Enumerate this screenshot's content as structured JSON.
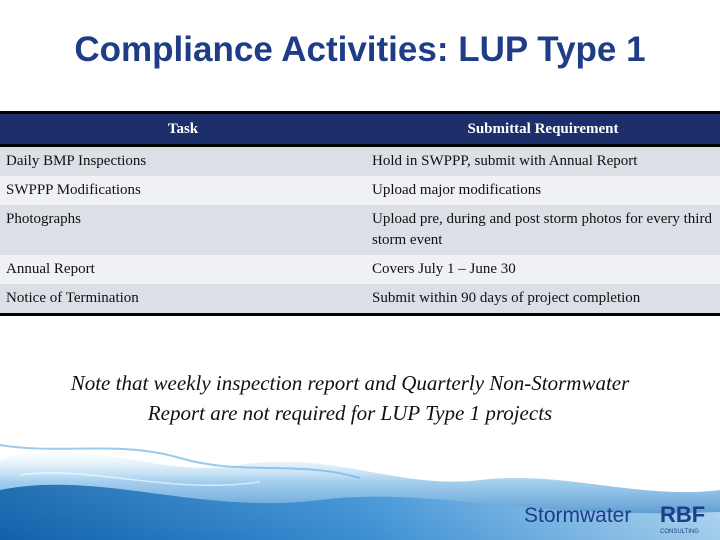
{
  "slide": {
    "title": "Compliance Activities: LUP Type 1",
    "note": "Note that weekly inspection report and Quarterly Non-Stormwater Report are not required for LUP Type 1 projects"
  },
  "table": {
    "headers": [
      "Task",
      "Submittal Requirement"
    ],
    "rows": [
      [
        "Daily BMP Inspections",
        "Hold in SWPPP, submit with Annual Report"
      ],
      [
        "SWPPP Modifications",
        "Upload major modifications"
      ],
      [
        "Photographs",
        "Upload pre, during and post storm photos for every third storm event"
      ],
      [
        "Annual Report",
        "Covers July 1 – June 30"
      ],
      [
        "Notice of Termination",
        "Submit within 90 days of project completion"
      ]
    ]
  },
  "footer": {
    "brand_text": "Stormwater",
    "logo_text": "RBF",
    "logo_subtext": "CONSULTING"
  },
  "colors": {
    "title": "#1f3d87",
    "header_bg": "#1c2f6b",
    "row_odd": "#dcdfe6",
    "row_even": "#eff1f4"
  },
  "icons": [
    "water-splash-image",
    "rbf-logo-icon"
  ]
}
